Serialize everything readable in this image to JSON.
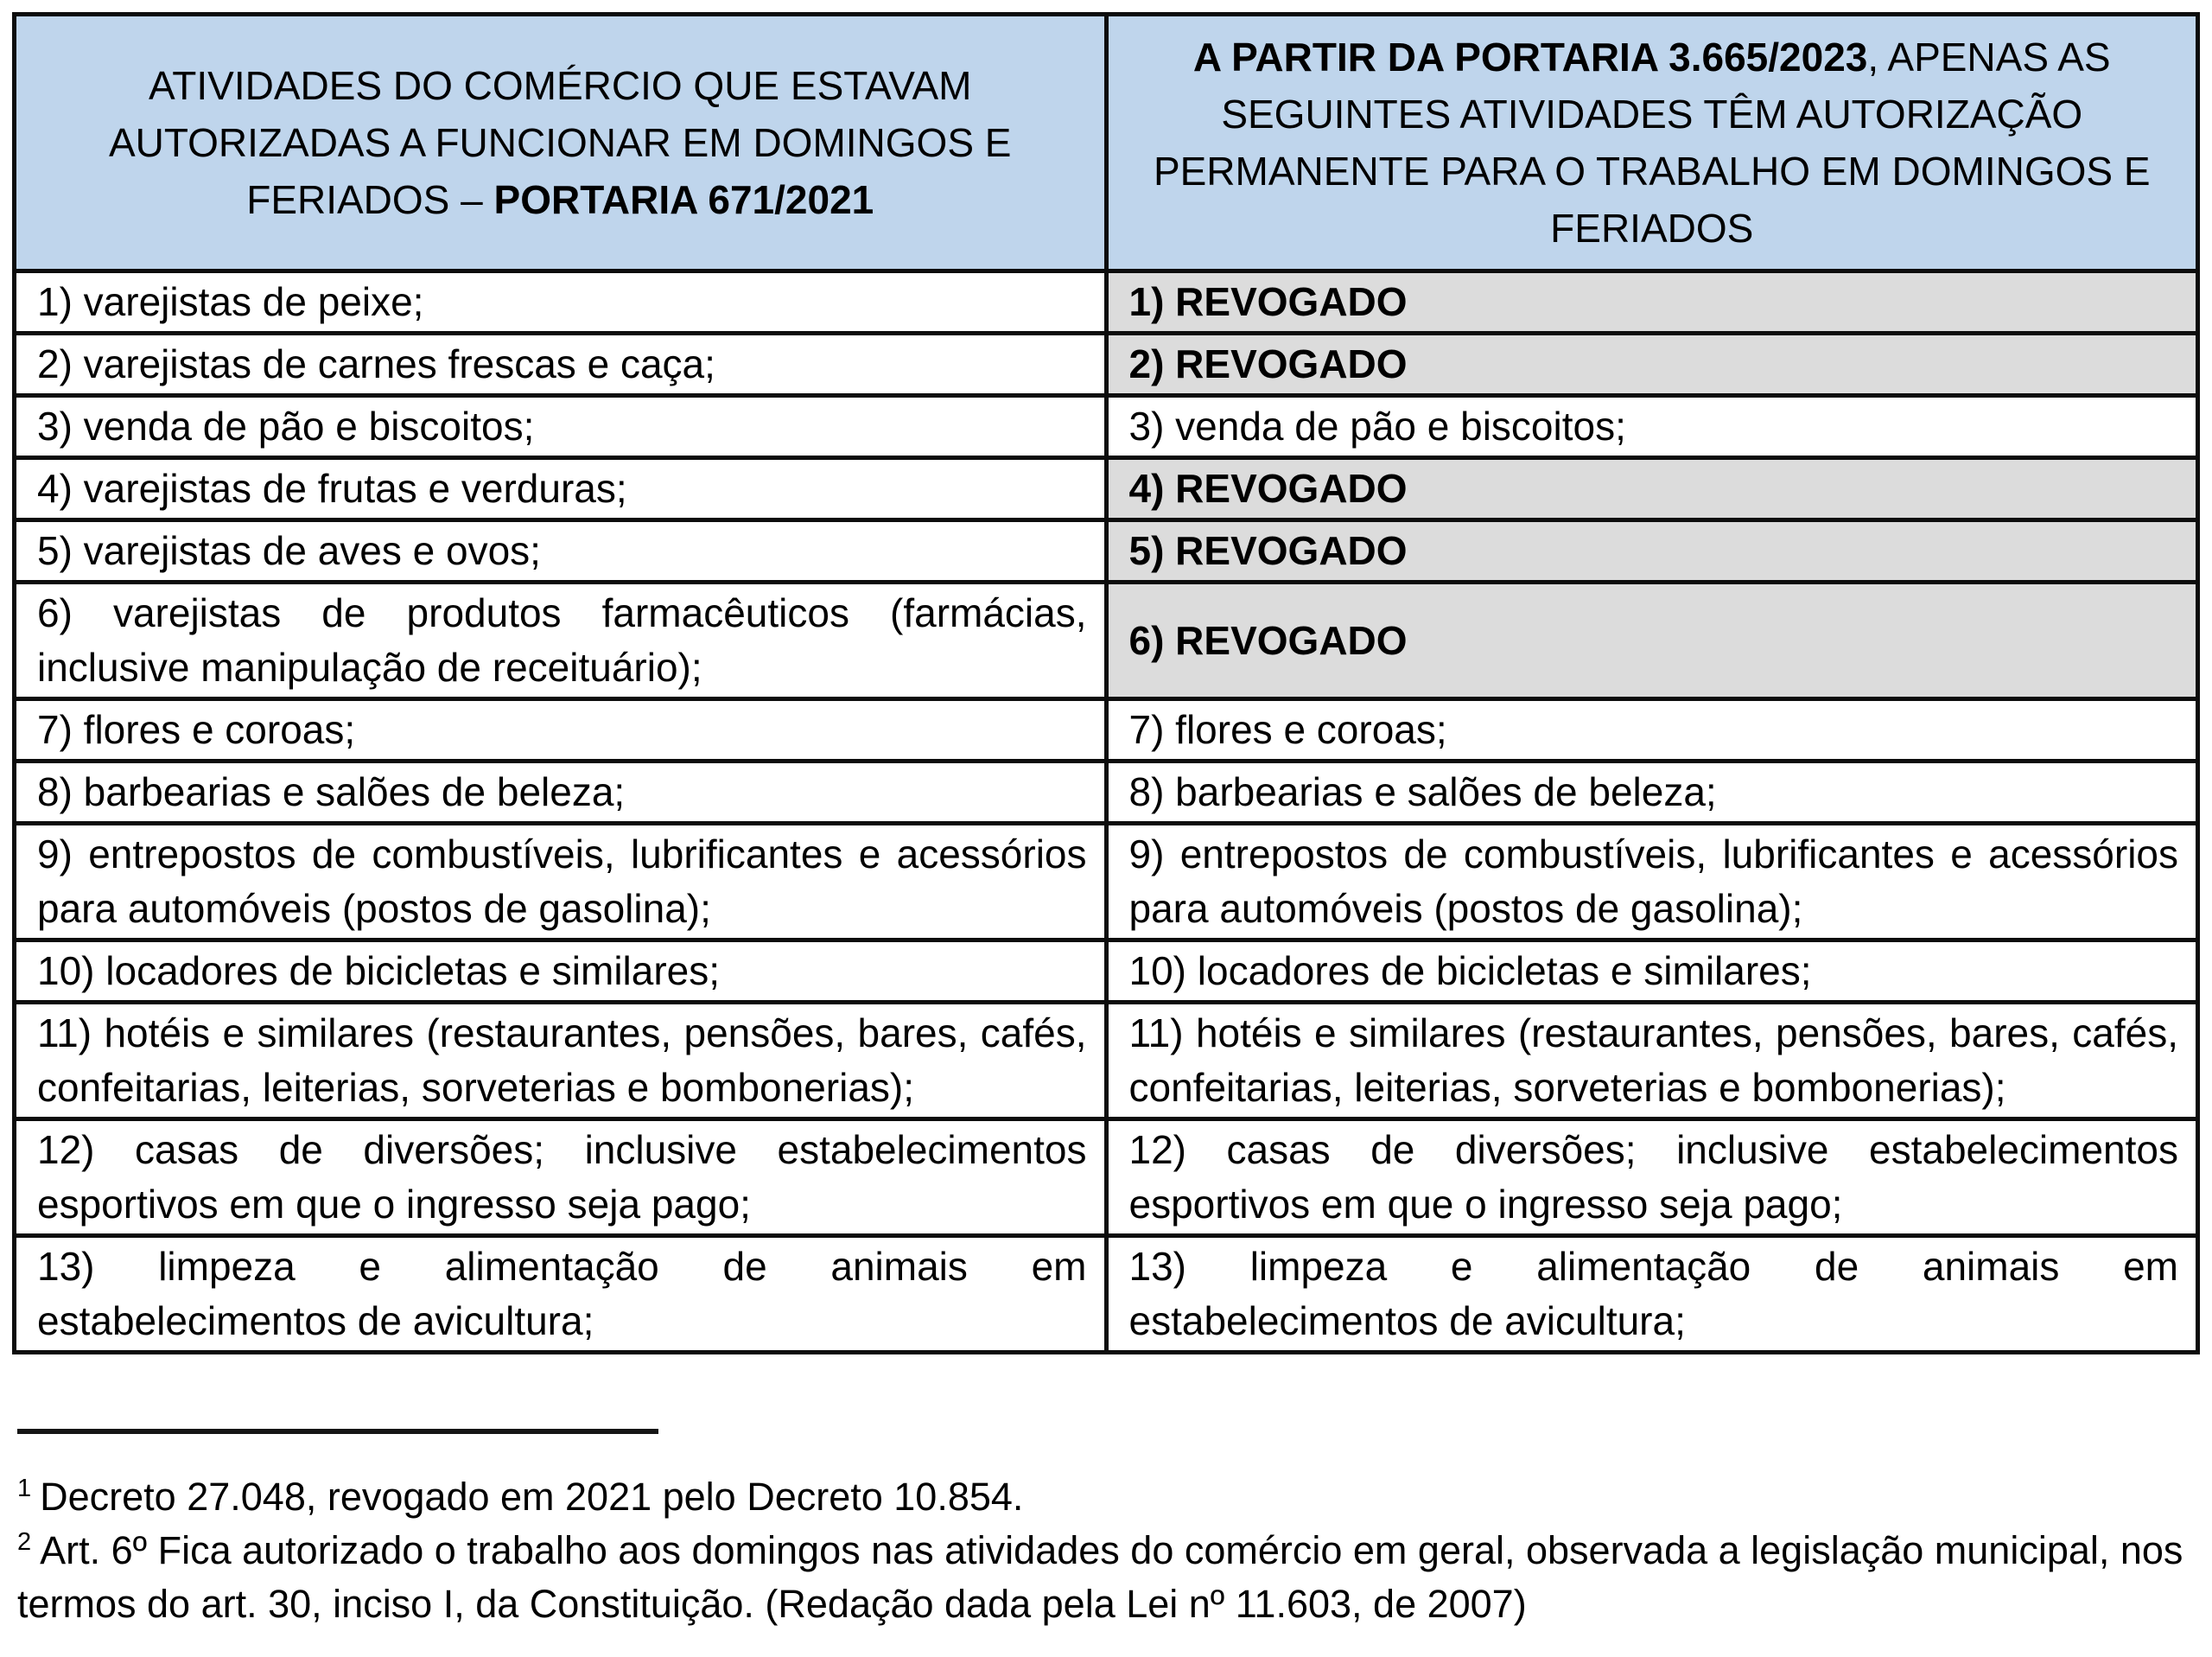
{
  "colors": {
    "header_bg": "#bfd5ec",
    "revoked_bg": "#dcdcdc",
    "border": "#0d0d0d",
    "text": "#000000",
    "page_bg": "#ffffff"
  },
  "table": {
    "header": {
      "left": {
        "normal": "ATIVIDADES DO COMÉRCIO QUE ESTAVAM AUTORIZADAS A FUNCIONAR EM DOMINGOS E FERIADOS – ",
        "bold": "PORTARIA 671/2021"
      },
      "right": {
        "bold": "A PARTIR DA PORTARIA 3.665/2023",
        "normal": ", APENAS AS SEGUINTES ATIVIDADES TÊM AUTORIZAÇÃO PERMANENTE PARA O TRABALHO EM DOMINGOS E FERIADOS"
      }
    },
    "rows": [
      {
        "left": "1) varejistas de peixe;",
        "right": "1) REVOGADO",
        "revoked": true
      },
      {
        "left": "2) varejistas de carnes frescas e caça;",
        "right": "2) REVOGADO",
        "revoked": true
      },
      {
        "left": "3) venda de pão e biscoitos;",
        "right": "3) venda de pão e biscoitos;",
        "revoked": false
      },
      {
        "left": "4) varejistas de frutas e verduras;",
        "right": "4) REVOGADO",
        "revoked": true
      },
      {
        "left": "5) varejistas de aves e ovos;",
        "right": "5) REVOGADO",
        "revoked": true
      },
      {
        "left": "6) varejistas de produtos farmacêuticos (farmácias, inclusive manipulação de receituário);",
        "right": "6) REVOGADO",
        "revoked": true
      },
      {
        "left": "7) flores e coroas;",
        "right": "7) flores e coroas;",
        "revoked": false
      },
      {
        "left": "8) barbearias e salões de beleza;",
        "right": "8) barbearias e salões de beleza;",
        "revoked": false
      },
      {
        "left": "9) entrepostos de combustíveis, lubrificantes e acessórios para automóveis (postos de gasolina);",
        "right": "9) entrepostos de combustíveis, lubrificantes e acessórios para automóveis (postos de gasolina);",
        "revoked": false
      },
      {
        "left": "10) locadores de bicicletas e similares;",
        "right": "10) locadores de bicicletas e similares;",
        "revoked": false
      },
      {
        "left": "11) hotéis e similares (restaurantes, pensões, bares, cafés, confeitarias, leiterias, sorveterias e bombonerias);",
        "right": "11) hotéis e similares (restaurantes, pensões, bares, cafés, confeitarias, leiterias, sorveterias e bombonerias);",
        "revoked": false
      },
      {
        "left": "12) casas de diversões; inclusive estabelecimentos esportivos em que o ingresso seja pago;",
        "right": "12) casas de diversões; inclusive estabelecimentos esportivos em que o ingresso seja pago;",
        "revoked": false
      },
      {
        "left": "13) limpeza e alimentação de animais em estabelecimentos de avicultura;",
        "right": "13) limpeza e alimentação de animais em estabelecimentos de avicultura;",
        "revoked": false
      }
    ]
  },
  "footnotes": {
    "note1": {
      "marker": "1",
      "text": "Decreto 27.048, revogado em 2021 pelo Decreto 10.854."
    },
    "note2": {
      "marker": "2",
      "text": "Art. 6º  Fica autorizado o trabalho aos domingos nas atividades do comércio em geral, observada a legislação municipal, nos termos do art. 30, inciso I, da Constituição. (Redação dada pela Lei nº 11.603, de 2007)"
    }
  }
}
